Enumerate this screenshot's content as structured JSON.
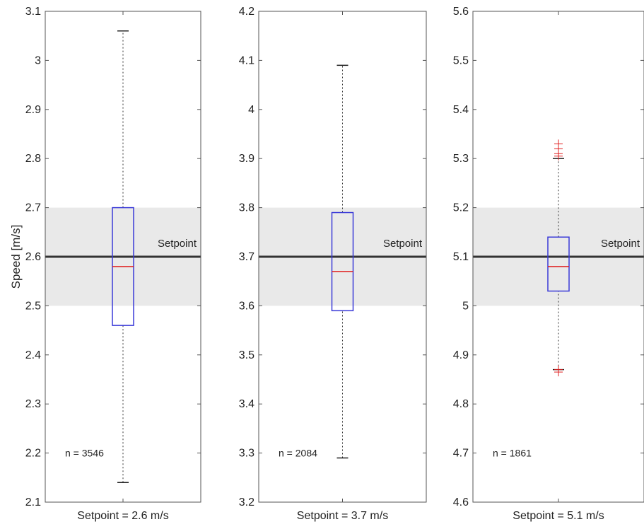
{
  "chart_data": [
    {
      "type": "box",
      "ylabel": "Speed [m/s]",
      "xlabel": "Setpoint = 2.6 m/s",
      "ylim": [
        2.1,
        3.1
      ],
      "yticks": [
        "2.1",
        "2.2",
        "2.3",
        "2.4",
        "2.5",
        "2.6",
        "2.7",
        "2.8",
        "2.9",
        "3",
        "3.1"
      ],
      "setpoint": 2.6,
      "setpoint_label": "Setpoint",
      "band": [
        2.5,
        2.7
      ],
      "box": {
        "whisker_low": 2.14,
        "q1": 2.46,
        "median": 2.58,
        "q3": 2.7,
        "whisker_high": 3.06
      },
      "outliers": [],
      "annotation": "n = 3546",
      "annotation_y": 2.2
    },
    {
      "type": "box",
      "ylabel": "",
      "xlabel": "Setpoint = 3.7 m/s",
      "ylim": [
        3.2,
        4.2
      ],
      "yticks": [
        "3.2",
        "3.3",
        "3.4",
        "3.5",
        "3.6",
        "3.7",
        "3.8",
        "3.9",
        "4",
        "4.1",
        "4.2"
      ],
      "setpoint": 3.7,
      "setpoint_label": "Setpoint",
      "band": [
        3.6,
        3.8
      ],
      "box": {
        "whisker_low": 3.29,
        "q1": 3.59,
        "median": 3.67,
        "q3": 3.79,
        "whisker_high": 4.09
      },
      "outliers": [],
      "annotation": "n = 2084",
      "annotation_y": 3.3
    },
    {
      "type": "box",
      "ylabel": "",
      "xlabel": "Setpoint = 5.1 m/s",
      "ylim": [
        4.6,
        5.6
      ],
      "yticks": [
        "4.6",
        "4.7",
        "4.8",
        "4.9",
        "5",
        "5.1",
        "5.2",
        "5.3",
        "5.4",
        "5.5",
        "5.6"
      ],
      "setpoint": 5.1,
      "setpoint_label": "Setpoint",
      "band": [
        5.0,
        5.2
      ],
      "box": {
        "whisker_low": 4.87,
        "q1": 5.03,
        "median": 5.08,
        "q3": 5.14,
        "whisker_high": 5.3
      },
      "outliers": [
        5.305,
        5.31,
        5.32,
        5.33,
        4.865,
        4.87
      ],
      "annotation": "n = 1861",
      "annotation_y": 4.7
    }
  ],
  "colors": {
    "box": "#3a3ad8",
    "median": "#e02020",
    "outlier": "#e02020",
    "band": "#e9e9e9",
    "setpoint_line": "#333333",
    "axis": "#555555"
  }
}
